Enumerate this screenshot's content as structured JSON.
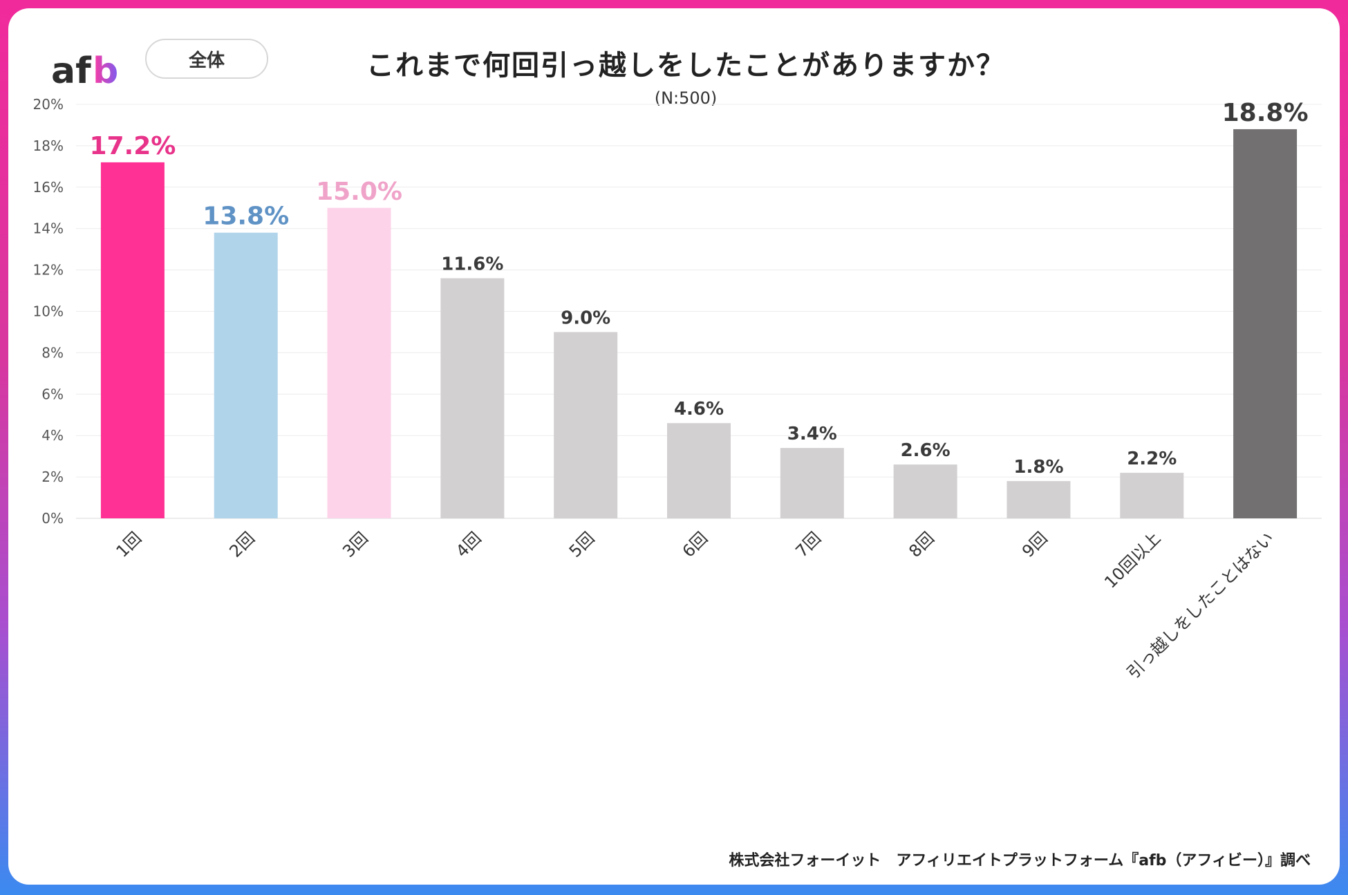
{
  "header": {
    "logo_text": "afb",
    "segment_label": "全体",
    "title": "これまで何回引っ越しをしたことがありますか？",
    "subtitle": "(N:500)"
  },
  "footer": {
    "credit": "株式会社フォーイット　アフィリエイトプラットフォーム『afb（アフィビー）』調べ"
  },
  "chart_data": {
    "type": "bar",
    "title": "これまで何回引っ越しをしたことがありますか？",
    "xlabel": "",
    "ylabel": "",
    "ylim": [
      0,
      20
    ],
    "y_ticks": [
      0,
      2,
      4,
      6,
      8,
      10,
      12,
      14,
      16,
      18,
      20
    ],
    "y_tick_labels": [
      "0%",
      "2%",
      "4%",
      "6%",
      "8%",
      "10%",
      "12%",
      "14%",
      "16%",
      "18%",
      "20%"
    ],
    "grid": true,
    "categories": [
      "1回",
      "2回",
      "3回",
      "4回",
      "5回",
      "6回",
      "7回",
      "8回",
      "9回",
      "10回以上",
      "引っ越しをしたことはない"
    ],
    "values": [
      17.2,
      13.8,
      15.0,
      11.6,
      9.0,
      4.6,
      3.4,
      2.6,
      1.8,
      2.2,
      18.8
    ],
    "value_labels": [
      "17.2%",
      "13.8%",
      "15.0%",
      "11.6%",
      "9.0%",
      "4.6%",
      "3.4%",
      "2.6%",
      "1.8%",
      "2.2%",
      "18.8%"
    ],
    "bar_colors": [
      "#ff3194",
      "#b0d4ea",
      "#fdd3e9",
      "#d3d0d1",
      "#d3d0d1",
      "#d3d0d1",
      "#d3d0d1",
      "#d3d0d1",
      "#d3d0d1",
      "#d3d0d1",
      "#727070"
    ],
    "label_colors": [
      "#e8338a",
      "#5f92c5",
      "#f0a3c9",
      "#3a3a3a",
      "#3a3a3a",
      "#3a3a3a",
      "#3a3a3a",
      "#3a3a3a",
      "#3a3a3a",
      "#3a3a3a",
      "#3a3a3a"
    ]
  }
}
